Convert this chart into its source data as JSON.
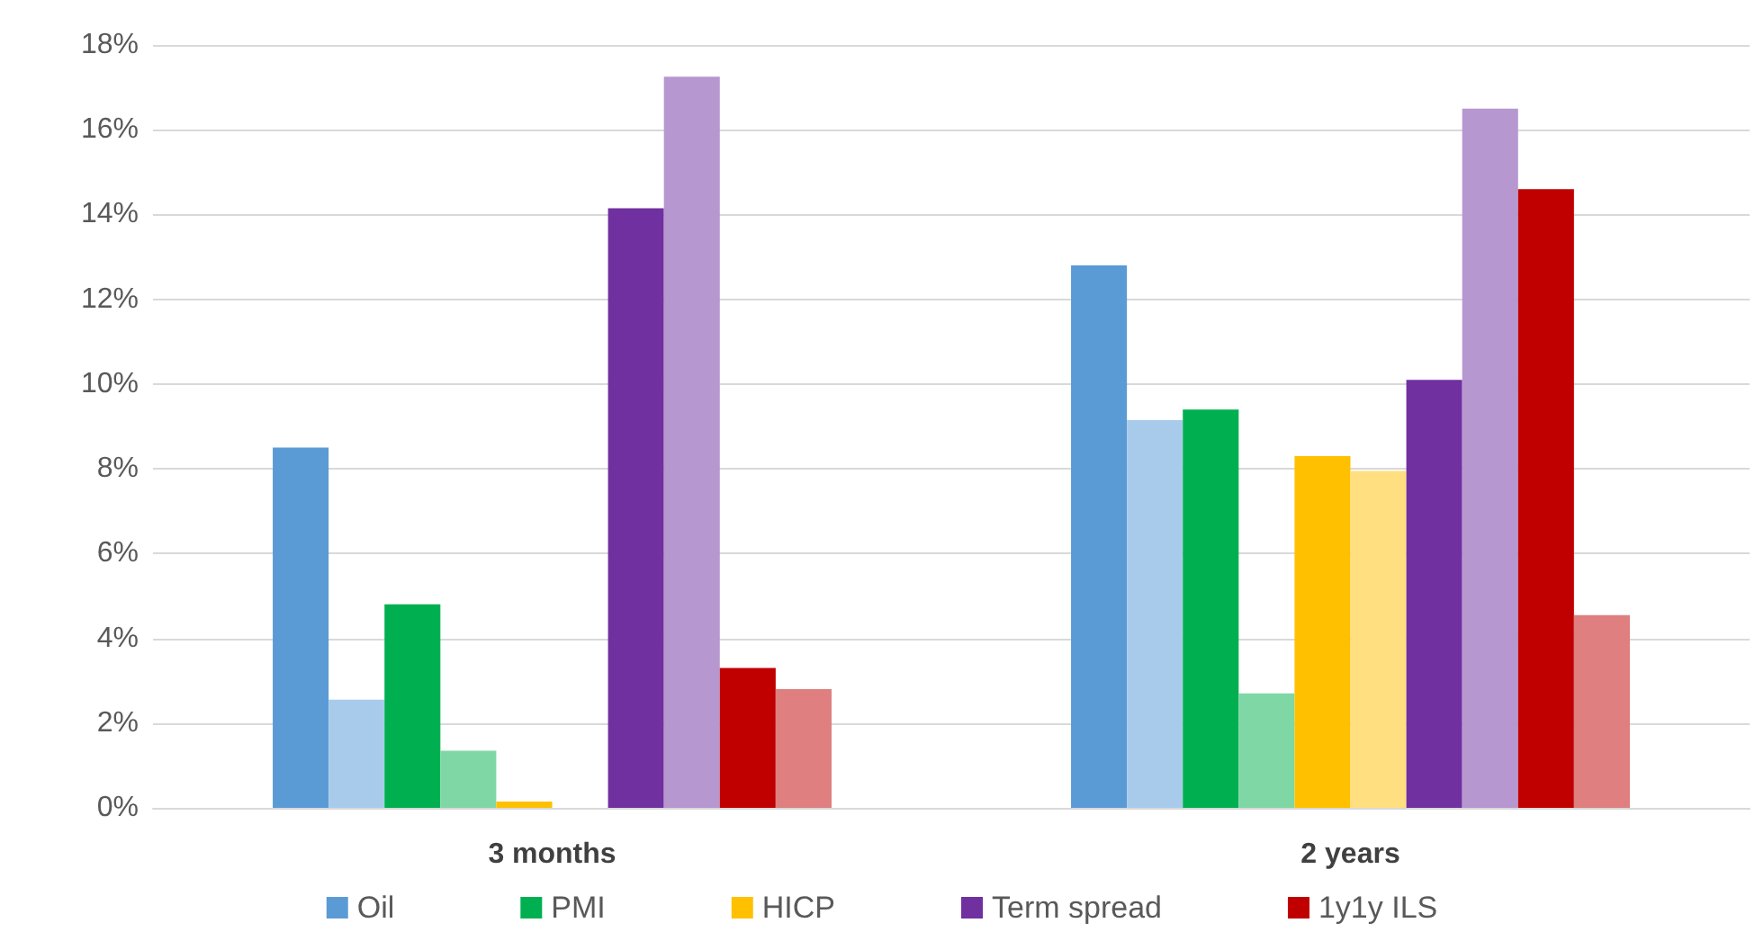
{
  "chart_data": {
    "type": "bar",
    "categories": [
      "3 months",
      "2 years"
    ],
    "series": [
      {
        "name": "Oil",
        "color": "#5b9bd5",
        "values": [
          8.5,
          12.8
        ]
      },
      {
        "color": "#a9cbeb",
        "values": [
          2.55,
          9.15
        ]
      },
      {
        "name": "PMI",
        "color": "#00b050",
        "values": [
          4.8,
          9.4
        ]
      },
      {
        "color": "#7fd7a6",
        "values": [
          1.35,
          2.7
        ]
      },
      {
        "name": "HICP",
        "color": "#ffc000",
        "values": [
          0.15,
          8.3
        ]
      },
      {
        "color": "#ffdf7f",
        "values": [
          0,
          7.95
        ]
      },
      {
        "name": "Term spread",
        "color": "#7030a0",
        "values": [
          14.15,
          10.1
        ]
      },
      {
        "color": "#b797cf",
        "values": [
          17.25,
          16.5
        ]
      },
      {
        "name": "1y1y ILS",
        "color": "#c00000",
        "values": [
          3.3,
          14.6
        ]
      },
      {
        "color": "#df7f7f",
        "values": [
          2.8,
          4.55
        ]
      }
    ],
    "ylim": [
      0,
      18
    ],
    "yticks": [
      {
        "value": 0,
        "label": "0%"
      },
      {
        "value": 2,
        "label": "2%"
      },
      {
        "value": 4,
        "label": "4%"
      },
      {
        "value": 6,
        "label": "6%"
      },
      {
        "value": 8,
        "label": "8%"
      },
      {
        "value": 10,
        "label": "10%"
      },
      {
        "value": 12,
        "label": "12%"
      },
      {
        "value": 14,
        "label": "14%"
      },
      {
        "value": 16,
        "label": "16%"
      },
      {
        "value": 18,
        "label": "18%"
      }
    ],
    "grid": "y",
    "legend": "bottom"
  }
}
